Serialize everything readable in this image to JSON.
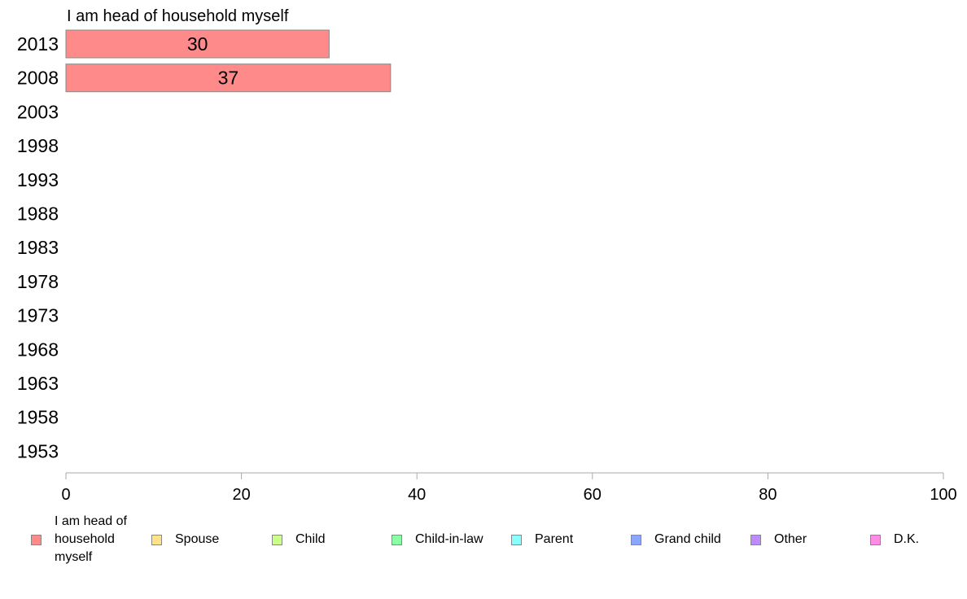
{
  "chart_data": {
    "type": "bar",
    "orientation": "horizontal",
    "stacked": true,
    "title": "I am head of household myself",
    "categories": [
      "2013",
      "2008",
      "2003",
      "1998",
      "1993",
      "1988",
      "1983",
      "1978",
      "1973",
      "1968",
      "1963",
      "1958",
      "1953"
    ],
    "series": [
      {
        "name": "I am head of household myself",
        "color": "#ff8a8a",
        "values": [
          30,
          37,
          null,
          null,
          null,
          null,
          null,
          null,
          null,
          null,
          null,
          null,
          null
        ]
      }
    ],
    "data_labels": [
      "30",
      "37"
    ],
    "xlim": [
      0,
      100
    ],
    "xticks": [
      "0",
      "20",
      "40",
      "60",
      "80",
      "100"
    ],
    "grid": false,
    "legend_position": "bottom",
    "legend": [
      {
        "label": "I am head of household myself",
        "label_lines": [
          "I am head of",
          "household",
          "myself"
        ],
        "color": "#ff8a8a"
      },
      {
        "label": "Spouse",
        "color": "#ffe38a"
      },
      {
        "label": "Child",
        "color": "#ccff8a"
      },
      {
        "label": "Child-in-law",
        "color": "#8affa6"
      },
      {
        "label": "Parent",
        "color": "#8affff"
      },
      {
        "label": "Grand child",
        "color": "#8aa6ff"
      },
      {
        "label": "Other",
        "color": "#c08aff"
      },
      {
        "label": "D.K.",
        "color": "#ff8ae8"
      }
    ]
  }
}
